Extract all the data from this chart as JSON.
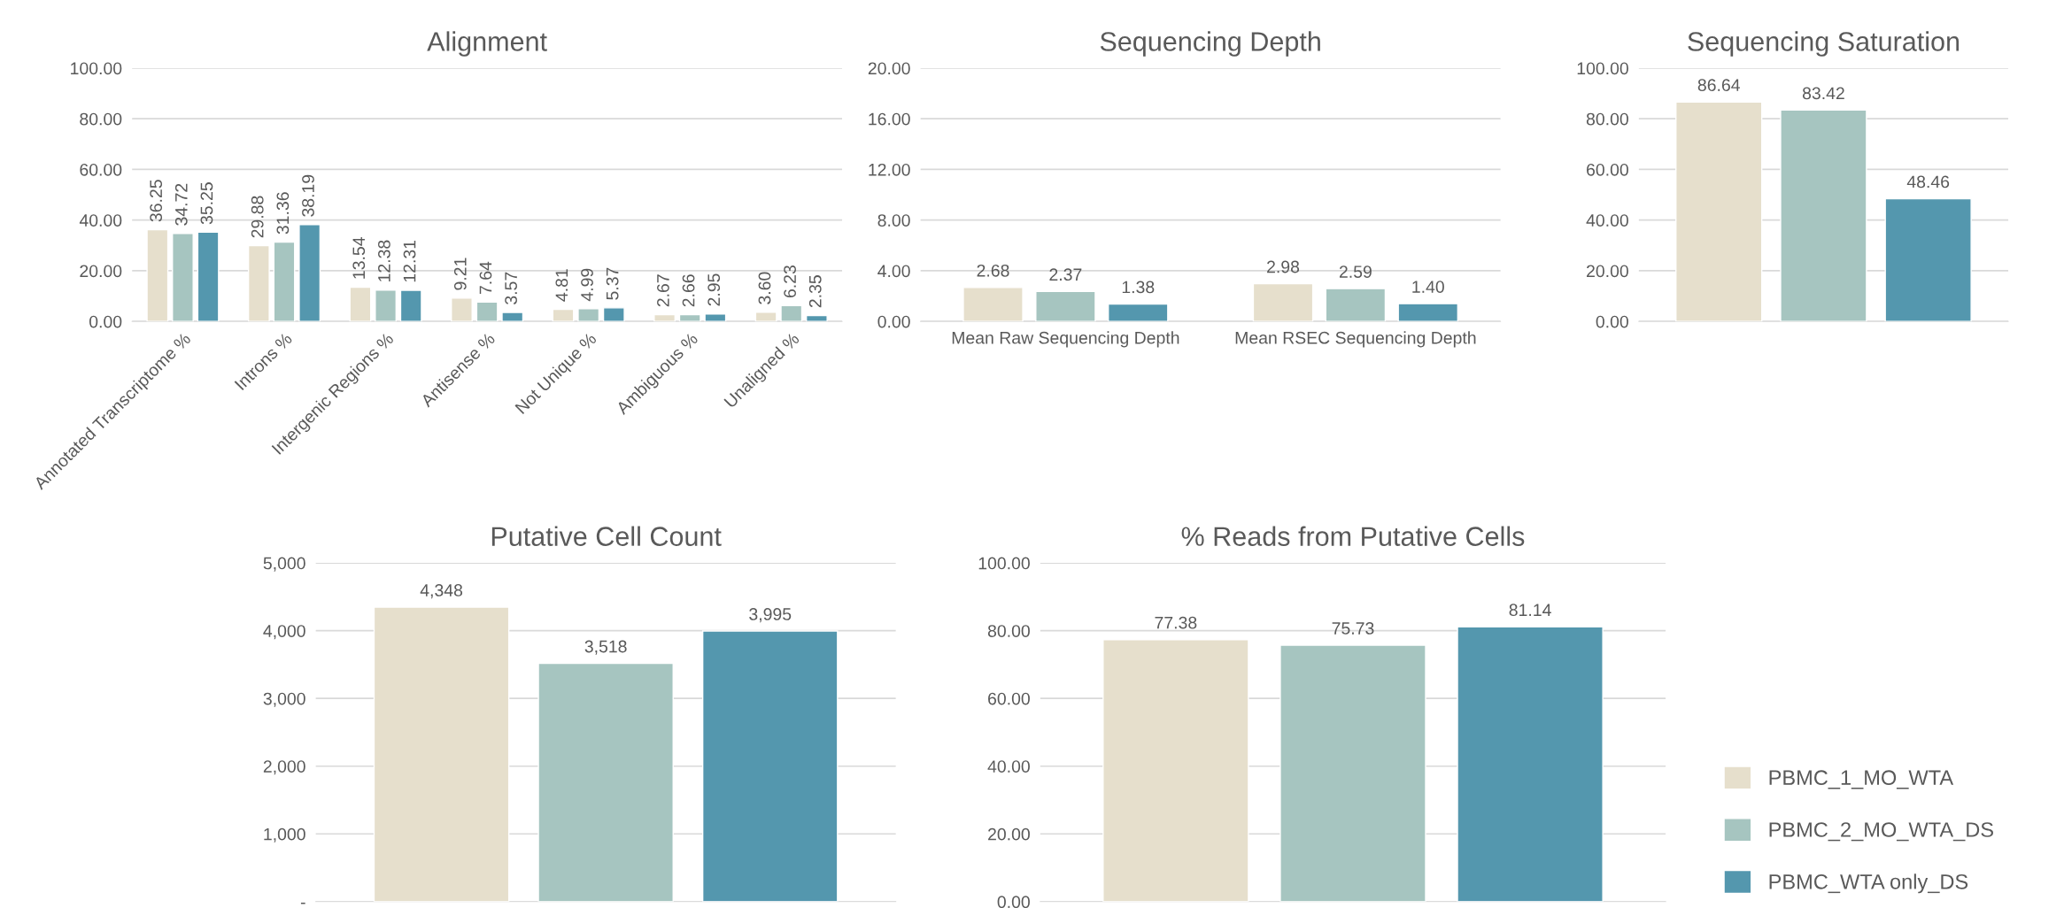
{
  "chart_data": [
    {
      "type": "bar",
      "title": "Alignment",
      "categories": [
        "Annotated Transcriptome %",
        "Introns %",
        "Intergenic Regions %",
        "Antisense %",
        "Not Unique %",
        "Ambiguous %",
        "Unaligned %"
      ],
      "series": [
        {
          "color": "#e6dfcc",
          "values": [
            36.25,
            29.88,
            13.54,
            9.21,
            4.81,
            2.67,
            3.6
          ],
          "value_labels": [
            "36.25",
            "29.88",
            "13.54",
            "9.21",
            "4.81",
            "2.67",
            "3.60"
          ]
        },
        {
          "color": "#a6c5c0",
          "values": [
            34.72,
            31.36,
            12.38,
            7.64,
            4.99,
            2.66,
            6.23
          ],
          "value_labels": [
            "34.72",
            "31.36",
            "12.38",
            "7.64",
            "4.99",
            "2.66",
            "6.23"
          ]
        },
        {
          "color": "#5497ae",
          "values": [
            35.25,
            38.19,
            12.31,
            3.57,
            5.37,
            2.95,
            2.35
          ],
          "value_labels": [
            "35.25",
            "38.19",
            "12.31",
            "3.57",
            "5.37",
            "2.95",
            "2.35"
          ]
        }
      ],
      "ylim": [
        0,
        100
      ],
      "yticks": [
        {
          "value": 0,
          "label": "0.00"
        },
        {
          "value": 20,
          "label": "20.00"
        },
        {
          "value": 40,
          "label": "40.00"
        },
        {
          "value": 60,
          "label": "60.00"
        },
        {
          "value": 80,
          "label": "80.00"
        },
        {
          "value": 100,
          "label": "100.00"
        }
      ],
      "grid": "y"
    },
    {
      "type": "bar",
      "title": "Sequencing Depth",
      "categories": [
        "Mean Raw Sequencing Depth",
        "Mean RSEC Sequencing Depth"
      ],
      "series": [
        {
          "color": "#e6dfcc",
          "values": [
            2.68,
            2.98
          ],
          "value_labels": [
            "2.68",
            "2.98"
          ]
        },
        {
          "color": "#a6c5c0",
          "values": [
            2.37,
            2.59
          ],
          "value_labels": [
            "2.37",
            "2.59"
          ]
        },
        {
          "color": "#5497ae",
          "values": [
            1.38,
            1.4
          ],
          "value_labels": [
            "1.38",
            "1.40"
          ]
        }
      ],
      "ylim": [
        0,
        20
      ],
      "yticks": [
        {
          "value": 0,
          "label": "0.00"
        },
        {
          "value": 4,
          "label": "4.00"
        },
        {
          "value": 8,
          "label": "8.00"
        },
        {
          "value": 12,
          "label": "12.00"
        },
        {
          "value": 16,
          "label": "16.00"
        },
        {
          "value": 20,
          "label": "20.00"
        }
      ],
      "grid": "y"
    },
    {
      "type": "bar",
      "title": "Sequencing Saturation",
      "categories": [
        null
      ],
      "series": [
        {
          "color": "#e6dfcc",
          "values": [
            86.64
          ],
          "value_labels": [
            "86.64"
          ]
        },
        {
          "color": "#a6c5c0",
          "values": [
            83.42
          ],
          "value_labels": [
            "83.42"
          ]
        },
        {
          "color": "#5497ae",
          "values": [
            48.46
          ],
          "value_labels": [
            "48.46"
          ]
        }
      ],
      "ylim": [
        0,
        100
      ],
      "yticks": [
        {
          "value": 0,
          "label": "0.00"
        },
        {
          "value": 20,
          "label": "20.00"
        },
        {
          "value": 40,
          "label": "40.00"
        },
        {
          "value": 60,
          "label": "60.00"
        },
        {
          "value": 80,
          "label": "80.00"
        },
        {
          "value": 100,
          "label": "100.00"
        }
      ],
      "grid": "y"
    },
    {
      "type": "bar",
      "title": "Putative Cell Count",
      "categories": [
        null
      ],
      "series": [
        {
          "color": "#e6dfcc",
          "values": [
            4348
          ],
          "value_labels": [
            "4,348"
          ]
        },
        {
          "color": "#a6c5c0",
          "values": [
            3518
          ],
          "value_labels": [
            "3,518"
          ]
        },
        {
          "color": "#5497ae",
          "values": [
            3995
          ],
          "value_labels": [
            "3,995"
          ]
        }
      ],
      "ylim": [
        0,
        5000
      ],
      "yticks": [
        {
          "value": 0,
          "label": "-"
        },
        {
          "value": 1000,
          "label": "1,000"
        },
        {
          "value": 2000,
          "label": "2,000"
        },
        {
          "value": 3000,
          "label": "3,000"
        },
        {
          "value": 4000,
          "label": "4,000"
        },
        {
          "value": 5000,
          "label": "5,000"
        }
      ],
      "grid": "y"
    },
    {
      "type": "bar",
      "title": "% Reads from Putative Cells",
      "categories": [
        null
      ],
      "series": [
        {
          "name": "PBMC_1_MO_WTA",
          "color": "#e6dfcc",
          "values": [
            77.38
          ],
          "value_labels": [
            "77.38"
          ]
        },
        {
          "name": "PBMC_2_MO_WTA_DS",
          "color": "#a6c5c0",
          "values": [
            75.73
          ],
          "value_labels": [
            "75.73"
          ]
        },
        {
          "name": "PBMC_WTA only_DS",
          "color": "#5497ae",
          "values": [
            81.14
          ],
          "value_labels": [
            "81.14"
          ]
        }
      ],
      "ylim": [
        0,
        100
      ],
      "yticks": [
        {
          "value": 0,
          "label": "0.00"
        },
        {
          "value": 20,
          "label": "20.00"
        },
        {
          "value": 40,
          "label": "40.00"
        },
        {
          "value": 60,
          "label": "60.00"
        },
        {
          "value": 80,
          "label": "80.00"
        },
        {
          "value": 100,
          "label": "100.00"
        }
      ],
      "grid": "y",
      "legend": "right"
    }
  ]
}
